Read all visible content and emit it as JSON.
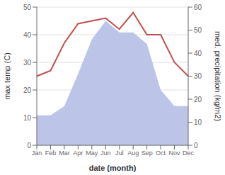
{
  "chart_data": {
    "type": "line",
    "xlabel": "date (month)",
    "ylabel": "max temp (C)",
    "y2label": "med. precipitation (kg/m2)",
    "categories": [
      "Jan",
      "Feb",
      "Mar",
      "Apr",
      "May",
      "Jun",
      "Jul",
      "Aug",
      "Sep",
      "Oct",
      "Nov",
      "Dec"
    ],
    "series": [
      {
        "type": "area",
        "color": "#bcc5e8",
        "axis": "y2",
        "values": [
          13,
          13,
          17,
          31,
          46,
          54,
          49,
          49,
          44,
          24,
          17,
          17
        ]
      },
      {
        "type": "line",
        "color": "#c0504d",
        "values": [
          25,
          27,
          37,
          44,
          45,
          46,
          42,
          48,
          40,
          40,
          30,
          25
        ]
      }
    ],
    "ylim": [
      0,
      50
    ],
    "yticks": [
      0,
      10,
      20,
      30,
      40,
      50
    ],
    "y2lim": [
      0,
      60
    ],
    "y2ticks": [
      0,
      10,
      20,
      30,
      40,
      50,
      60
    ],
    "grid": true
  }
}
